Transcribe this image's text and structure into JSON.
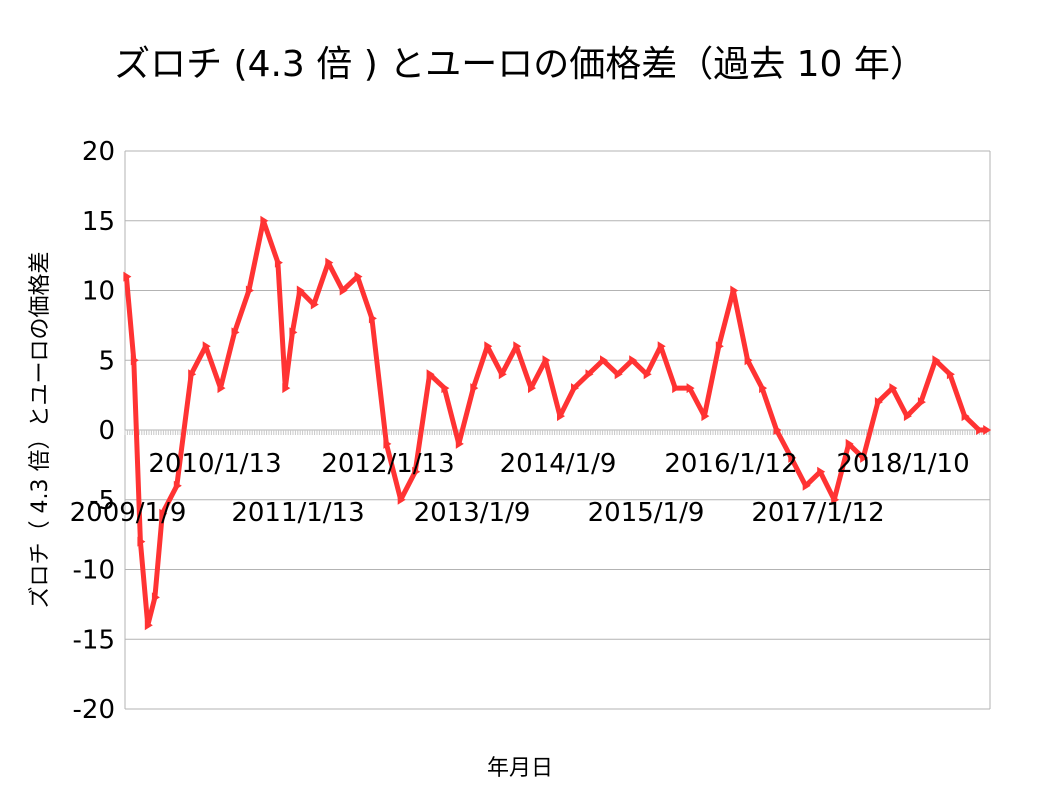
{
  "chart_data": {
    "type": "line",
    "title": "ズロチ (4.3 倍 ) とユーロの価格差（過去 10 年）",
    "xlabel": "年月日",
    "ylabel": "ズロチ（ 4.3 倍）とユーロの価格差",
    "ylim": [
      -20,
      20
    ],
    "y_ticks": [
      20,
      15,
      10,
      5,
      0,
      -5,
      -10,
      -15,
      -20
    ],
    "x_tick_labels_upper": [
      "2010/1/13",
      "2012/1/13",
      "2014/1/9",
      "2016/1/12",
      "2018/1/10"
    ],
    "x_tick_labels_lower": [
      "2009/1/9",
      "2011/1/13",
      "2013/1/9",
      "2015/1/9",
      "2017/1/12"
    ],
    "grid": "horizontal",
    "legend": "none",
    "series_color": "#ff3333",
    "marker": "triangle-right",
    "x_start": "2009/1/9",
    "x_end": "2018/12",
    "series": [
      {
        "x": [
          "2009/01",
          "2009/02",
          "2009/03",
          "2009/04",
          "2009/05",
          "2009/06",
          "2009/08",
          "2009/10",
          "2009/12",
          "2010/02",
          "2010/04",
          "2010/06",
          "2010/08",
          "2010/10",
          "2010/11",
          "2010/12",
          "2011/01",
          "2011/03",
          "2011/05",
          "2011/07",
          "2011/09",
          "2011/11",
          "2012/01",
          "2012/03",
          "2012/05",
          "2012/07",
          "2012/09",
          "2012/11",
          "2013/01",
          "2013/03",
          "2013/05",
          "2013/07",
          "2013/09",
          "2013/11",
          "2014/01",
          "2014/03",
          "2014/05",
          "2014/07",
          "2014/09",
          "2014/11",
          "2015/01",
          "2015/03",
          "2015/05",
          "2015/07",
          "2015/09",
          "2015/11",
          "2016/01",
          "2016/03",
          "2016/05",
          "2016/07",
          "2016/09",
          "2016/11",
          "2017/01",
          "2017/03",
          "2017/05",
          "2017/07",
          "2017/09",
          "2017/11",
          "2018/01",
          "2018/03",
          "2018/05",
          "2018/07",
          "2018/09",
          "2018/11",
          "2018/12"
        ],
        "values": [
          11,
          5,
          -8,
          -14,
          -12,
          -6,
          -4,
          4,
          6,
          3,
          7,
          10,
          15,
          12,
          3,
          7,
          10,
          9,
          12,
          10,
          11,
          8,
          -1,
          -5,
          -3,
          4,
          3,
          -1,
          3,
          6,
          4,
          6,
          3,
          5,
          1,
          3,
          4,
          5,
          4,
          5,
          4,
          6,
          3,
          3,
          1,
          6,
          10,
          5,
          3,
          0,
          -2,
          -4,
          -3,
          -5,
          -1,
          -2,
          2,
          3,
          1,
          2,
          5,
          4,
          1,
          0,
          0
        ]
      }
    ]
  }
}
